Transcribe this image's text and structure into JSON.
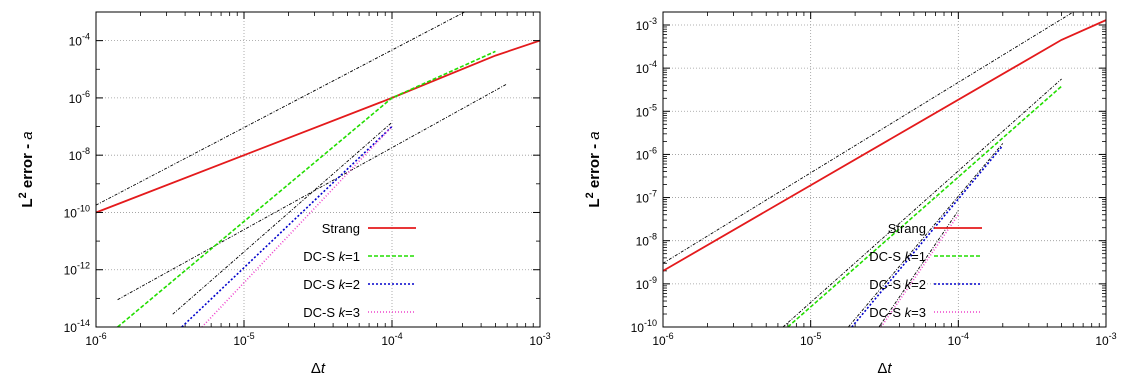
{
  "chart_data": [
    {
      "type": "line",
      "scale": {
        "x": "log",
        "y": "log"
      },
      "xlim": [
        1e-06,
        0.001
      ],
      "ylim": [
        1e-14,
        0.001
      ],
      "grid": true,
      "legend_position": "bottom-right",
      "xlabel": {
        "base": "Δ",
        "var": "t"
      },
      "ylabel": {
        "L": "L",
        "sup": "2",
        "rest": " error - ",
        "var": "a"
      },
      "x_ticks": [
        {
          "value": 1e-06,
          "base": "10",
          "exp": "-6"
        },
        {
          "value": 1e-05,
          "base": "10",
          "exp": "-5"
        },
        {
          "value": 0.0001,
          "base": "10",
          "exp": "-4"
        },
        {
          "value": 0.001,
          "base": "10",
          "exp": "-3"
        }
      ],
      "y_ticks": [
        {
          "value": 0.0001,
          "base": "10",
          "exp": "-4"
        },
        {
          "value": 1e-06,
          "base": "10",
          "exp": "-6"
        },
        {
          "value": 1e-08,
          "base": "10",
          "exp": "-8"
        },
        {
          "value": 1e-10,
          "base": "10",
          "exp": "-10"
        },
        {
          "value": 1e-12,
          "base": "10",
          "exp": "-12"
        },
        {
          "value": 1e-14,
          "base": "10",
          "exp": "-14"
        }
      ],
      "series": [
        {
          "name": "Strang",
          "pre": "Strang",
          "k": "",
          "post": "",
          "color": "#e41a1c",
          "dash": "",
          "x": [
            1e-06,
            0.0001,
            0.0005,
            0.001
          ],
          "y": [
            1e-10,
            1e-06,
            3e-05,
            0.0001
          ]
        },
        {
          "name": "DC-S k=1",
          "pre": "DC-S ",
          "k": "k",
          "post": "=1",
          "color": "#22dd00",
          "dash": "4,2",
          "x": [
            1.4e-06,
            0.0001,
            0.0005
          ],
          "y": [
            1e-14,
            1e-06,
            4.2e-05
          ]
        },
        {
          "name": "DC-S k=2",
          "pre": "DC-S ",
          "k": "k",
          "post": "=2",
          "color": "#0000cc",
          "dash": "2,2",
          "x": [
            3.8e-06,
            0.0001
          ],
          "y": [
            1e-14,
            1e-07
          ]
        },
        {
          "name": "DC-S k=3",
          "pre": "DC-S ",
          "k": "k",
          "post": "=3",
          "color": "#ee44cc",
          "dash": "1,2",
          "x": [
            5.2e-06,
            0.0001
          ],
          "y": [
            1e-14,
            1e-07
          ]
        }
      ],
      "reference_lines": [
        {
          "x": [
            1e-06,
            0.0009
          ],
          "y": [
            1.8e-10,
            0.018
          ]
        },
        {
          "x": [
            1.4e-06,
            0.0006
          ],
          "y": [
            9e-14,
            3.1e-06
          ]
        },
        {
          "x": [
            3.3e-06,
            0.0001
          ],
          "y": [
            2.8e-14,
            1.4e-07
          ]
        }
      ]
    },
    {
      "type": "line",
      "scale": {
        "x": "log",
        "y": "log"
      },
      "xlim": [
        1e-06,
        0.001
      ],
      "ylim": [
        1e-10,
        0.002
      ],
      "grid": true,
      "legend_position": "bottom-right",
      "xlabel": {
        "base": "Δ",
        "var": "t"
      },
      "ylabel": {
        "L": "L",
        "sup": "2",
        "rest": " error - ",
        "var": "a"
      },
      "x_ticks": [
        {
          "value": 1e-06,
          "base": "10",
          "exp": "-6"
        },
        {
          "value": 1e-05,
          "base": "10",
          "exp": "-5"
        },
        {
          "value": 0.0001,
          "base": "10",
          "exp": "-4"
        },
        {
          "value": 0.001,
          "base": "10",
          "exp": "-3"
        }
      ],
      "y_ticks": [
        {
          "value": 0.001,
          "base": "10",
          "exp": "-3"
        },
        {
          "value": 0.0001,
          "base": "10",
          "exp": "-4"
        },
        {
          "value": 1e-05,
          "base": "10",
          "exp": "-5"
        },
        {
          "value": 1e-06,
          "base": "10",
          "exp": "-6"
        },
        {
          "value": 1e-07,
          "base": "10",
          "exp": "-7"
        },
        {
          "value": 1e-08,
          "base": "10",
          "exp": "-8"
        },
        {
          "value": 1e-09,
          "base": "10",
          "exp": "-9"
        },
        {
          "value": 1e-10,
          "base": "10",
          "exp": "-10"
        }
      ],
      "series": [
        {
          "name": "Strang",
          "pre": "Strang",
          "k": "",
          "post": "",
          "color": "#e41a1c",
          "dash": "",
          "x": [
            1e-06,
            0.0005,
            0.001
          ],
          "y": [
            2e-09,
            0.00045,
            0.0013
          ]
        },
        {
          "name": "DC-S k=1",
          "pre": "DC-S ",
          "k": "k",
          "post": "=1",
          "color": "#22dd00",
          "dash": "4,2",
          "x": [
            7e-06,
            0.0005
          ],
          "y": [
            1e-10,
            3.8e-05
          ]
        },
        {
          "name": "DC-S k=2",
          "pre": "DC-S ",
          "k": "k",
          "post": "=2",
          "color": "#0000cc",
          "dash": "2,2",
          "x": [
            1.9e-05,
            0.0002
          ],
          "y": [
            1e-10,
            1.6e-06
          ]
        },
        {
          "name": "DC-S k=3",
          "pre": "DC-S ",
          "k": "k",
          "post": "=3",
          "color": "#ee44cc",
          "dash": "1,2",
          "x": [
            3e-05,
            0.0001
          ],
          "y": [
            1e-10,
            4e-08
          ]
        }
      ],
      "reference_lines": [
        {
          "x": [
            1e-06,
            0.0006
          ],
          "y": [
            3e-09,
            0.002
          ]
        },
        {
          "x": [
            6.5e-06,
            0.0005
          ],
          "y": [
            1e-10,
            5.6e-05
          ]
        },
        {
          "x": [
            1.8e-05,
            0.0002
          ],
          "y": [
            1e-10,
            1.8e-06
          ]
        },
        {
          "x": [
            2.9e-05,
            0.0001
          ],
          "y": [
            1e-10,
            5e-08
          ]
        }
      ]
    }
  ]
}
